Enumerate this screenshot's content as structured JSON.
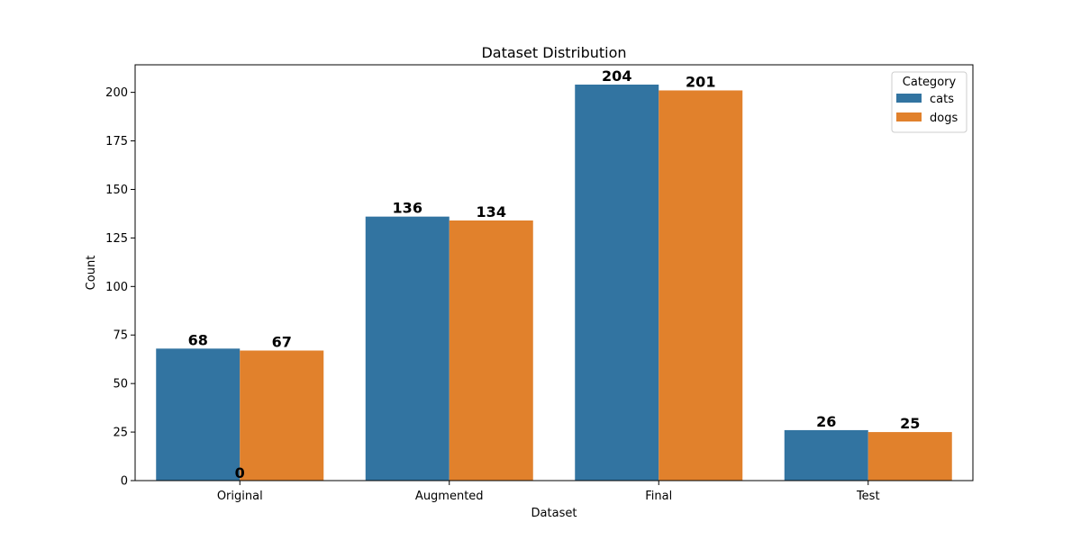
{
  "chart_data": {
    "type": "bar",
    "title": "Dataset Distribution",
    "xlabel": "Dataset",
    "ylabel": "Count",
    "categories": [
      "Original",
      "Augmented",
      "Final",
      "Test"
    ],
    "series": [
      {
        "name": "cats",
        "values": [
          68,
          136,
          204,
          26
        ],
        "color": "#3274a1"
      },
      {
        "name": "dogs",
        "values": [
          67,
          134,
          201,
          25
        ],
        "color": "#e1812c"
      }
    ],
    "ylim": [
      0,
      214.2
    ],
    "yticks": [
      0,
      25,
      50,
      75,
      100,
      125,
      150,
      175,
      200
    ],
    "ytick_labels": [
      "0",
      "25",
      "50",
      "75",
      "100",
      "125",
      "150",
      "175",
      "200"
    ],
    "data_labels": [
      {
        "category": "Original",
        "series": "cats",
        "text": "68"
      },
      {
        "category": "Original",
        "series": "dogs",
        "text": "67"
      },
      {
        "category": "Augmented",
        "series": "cats",
        "text": "136"
      },
      {
        "category": "Augmented",
        "series": "dogs",
        "text": "134"
      },
      {
        "category": "Final",
        "series": "cats",
        "text": "204"
      },
      {
        "category": "Final",
        "series": "dogs",
        "text": "201"
      },
      {
        "category": "Test",
        "series": "cats",
        "text": "26"
      },
      {
        "category": "Test",
        "series": "dogs",
        "text": "25"
      },
      {
        "category": "Original",
        "series": "dogs",
        "text": "0",
        "at_zero": true
      }
    ],
    "legend": {
      "title": "Category",
      "position": "top-right",
      "entries": [
        "cats",
        "dogs"
      ]
    },
    "grid": false
  }
}
